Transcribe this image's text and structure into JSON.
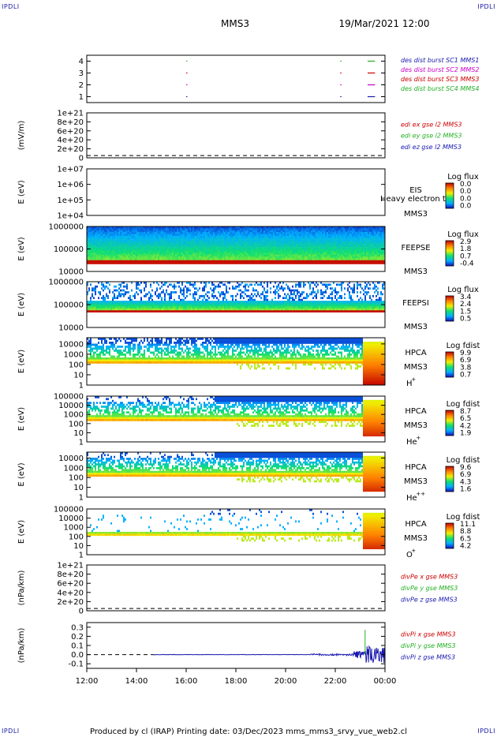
{
  "corners": [
    "IPDLI",
    "IPDLI",
    "IPDLI",
    "IPDLI"
  ],
  "header": {
    "spacecraft": "MMS3",
    "datetime": "19/Mar/2021 12:00"
  },
  "footer": {
    "text": "Produced by cl (IRAP)   Printing date: 03/Dec/2023   mms_mms3_srvy_vue_web2.cl"
  },
  "colors": {
    "blue": "#1a1ab0",
    "red": "#cc0000",
    "green": "#22b022",
    "magenta": "#cc00cc",
    "black": "#000000"
  },
  "chart_data": [
    {
      "id": "availability",
      "type": "line",
      "yticks": [
        "4",
        "3",
        "2",
        "1"
      ],
      "ylim": [
        0.5,
        4.5
      ],
      "legend": [
        {
          "text": "des dist burst SC1 MMS1",
          "color": "#1a1ab0"
        },
        {
          "text": "des dist burst SC2 MMS2",
          "color": "#cc00cc"
        },
        {
          "text": "des dist burst SC3 MMS3",
          "color": "#cc0000"
        },
        {
          "text": "des dist burst SC4 MMS4",
          "color": "#22b022"
        }
      ],
      "series": [
        {
          "level": 4,
          "color": "#22b022",
          "x": [
            16.0,
            22.2,
            23.3,
            23.5
          ],
          "segments": [
            [
              16.0,
              16.02
            ],
            [
              22.2,
              22.25
            ],
            [
              23.3,
              23.6
            ]
          ]
        },
        {
          "level": 3,
          "color": "#cc0000",
          "segments": [
            [
              16.0,
              16.02
            ],
            [
              22.2,
              22.25
            ],
            [
              23.3,
              23.6
            ],
            [
              23.95,
              24.0
            ]
          ]
        },
        {
          "level": 2,
          "color": "#cc00cc",
          "segments": [
            [
              16.0,
              16.02
            ],
            [
              22.2,
              22.25
            ],
            [
              23.3,
              23.6
            ]
          ]
        },
        {
          "level": 1,
          "color": "#1a1ab0",
          "segments": [
            [
              16.0,
              16.02
            ],
            [
              22.2,
              22.25
            ],
            [
              23.3,
              23.6
            ]
          ]
        }
      ]
    },
    {
      "id": "edi",
      "type": "line",
      "ylabel": "(mV/m)",
      "yticks": [
        "1e+21",
        "8e+20",
        "6e+20",
        "4e+20",
        "2e+20",
        "0"
      ],
      "ylim": [
        0,
        1e+21
      ],
      "legend": [
        {
          "text": "edi ex gse l2 MMS3",
          "color": "#cc0000"
        },
        {
          "text": "edi ey gse l2 MMS3",
          "color": "#22b022"
        },
        {
          "text": "edi ez gse l2 MMS3",
          "color": "#1a1ab0"
        }
      ]
    },
    {
      "id": "eis",
      "type": "heatmap",
      "ylabel": "E (eV)",
      "yticks": [
        "1e+07",
        "1e+06",
        "1e+05",
        "1e+04"
      ],
      "ylim": [
        10000,
        10000000
      ],
      "scale": "log",
      "instrument": "EIS",
      "spacecraft": "MMS3",
      "overlay": "Heavy electron to",
      "cbar": {
        "title": "Log flux",
        "ticks": [
          "0.0",
          "0.0",
          "0.0",
          "0.0"
        ]
      }
    },
    {
      "id": "feepse",
      "type": "heatmap",
      "ylabel": "E (eV)",
      "yticks": [
        "1000000",
        "100000",
        "10000"
      ],
      "ylim": [
        10000,
        1000000
      ],
      "scale": "log",
      "instrument": "FEEPSE",
      "spacecraft": "MMS3",
      "cbar": {
        "title": "Log flux",
        "ticks": [
          "2.9",
          "1.8",
          "0.7",
          "-0.4"
        ]
      }
    },
    {
      "id": "feepsi",
      "type": "heatmap",
      "ylabel": "E (eV)",
      "yticks": [
        "1000000",
        "100000",
        "10000"
      ],
      "ylim": [
        10000,
        1000000
      ],
      "scale": "log",
      "instrument": "FEEPSI",
      "spacecraft": "MMS3",
      "cbar": {
        "title": "Log flux",
        "ticks": [
          "3.4",
          "2.4",
          "1.5",
          "0.5"
        ]
      }
    },
    {
      "id": "hpca_h",
      "type": "heatmap",
      "ylabel": "E (eV)",
      "yticks": [
        "10000",
        "1000",
        "100",
        "10",
        "1"
      ],
      "ylim": [
        1,
        40000
      ],
      "scale": "log",
      "instrument": "HPCA",
      "spacecraft": "MMS3",
      "species": "H",
      "charge": "+",
      "cbar": {
        "title": "Log fdist",
        "ticks": [
          "9.9",
          "6.9",
          "3.8",
          "0.7"
        ]
      }
    },
    {
      "id": "hpca_he",
      "type": "heatmap",
      "ylabel": "E (eV)",
      "yticks": [
        "100000",
        "10000",
        "1000",
        "100",
        "10",
        "1"
      ],
      "ylim": [
        1,
        100000
      ],
      "scale": "log",
      "instrument": "HPCA",
      "spacecraft": "MMS3",
      "species": "He",
      "charge": "+",
      "cbar": {
        "title": "Log fdist",
        "ticks": [
          "8.7",
          "6.5",
          "4.2",
          "1.9"
        ]
      }
    },
    {
      "id": "hpca_hepp",
      "type": "heatmap",
      "ylabel": "E (eV)",
      "yticks": [
        "10000",
        "1000",
        "100",
        "10",
        "1"
      ],
      "ylim": [
        1,
        40000
      ],
      "scale": "log",
      "instrument": "HPCA",
      "spacecraft": "MMS3",
      "species": "He",
      "charge": "++",
      "cbar": {
        "title": "Log fdist",
        "ticks": [
          "9.6",
          "6.9",
          "4.3",
          "1.6"
        ]
      }
    },
    {
      "id": "hpca_o",
      "type": "heatmap",
      "ylabel": "E (eV)",
      "yticks": [
        "100000",
        "10000",
        "1000",
        "100",
        "10",
        "1"
      ],
      "ylim": [
        1,
        100000
      ],
      "scale": "log",
      "instrument": "HPCA",
      "spacecraft": "MMS3",
      "species": "O",
      "charge": "+",
      "cbar": {
        "title": "Log fdist",
        "ticks": [
          "11.1",
          "8.8",
          "6.5",
          "4.2"
        ]
      }
    },
    {
      "id": "divpe",
      "type": "line",
      "ylabel": "(nPa/km)",
      "yticks": [
        "1e+21",
        "8e+20",
        "6e+20",
        "4e+20",
        "2e+20",
        "0"
      ],
      "ylim": [
        0,
        1e+21
      ],
      "legend": [
        {
          "text": "divPe x gse MMS3",
          "color": "#cc0000"
        },
        {
          "text": "divPe y gse MMS3",
          "color": "#22b022"
        },
        {
          "text": "divPe z gse MMS3",
          "color": "#1a1ab0"
        }
      ]
    },
    {
      "id": "divpi",
      "type": "line",
      "ylabel": "(nPa/km)",
      "yticks": [
        "0.3",
        "0.2",
        "0.1",
        "0.0",
        "-0.1"
      ],
      "ylim": [
        -0.15,
        0.35
      ],
      "legend": [
        {
          "text": "divPi x gse MMS3",
          "color": "#cc0000"
        },
        {
          "text": "divPi y gse MMS3",
          "color": "#22b022"
        },
        {
          "text": "divPi z gse MMS3",
          "color": "#1a1ab0"
        }
      ]
    }
  ],
  "xaxis": {
    "labels": [
      "12:00",
      "14:00",
      "16:00",
      "18:00",
      "20:00",
      "22:00",
      "00:00"
    ],
    "range": [
      12,
      24
    ]
  }
}
